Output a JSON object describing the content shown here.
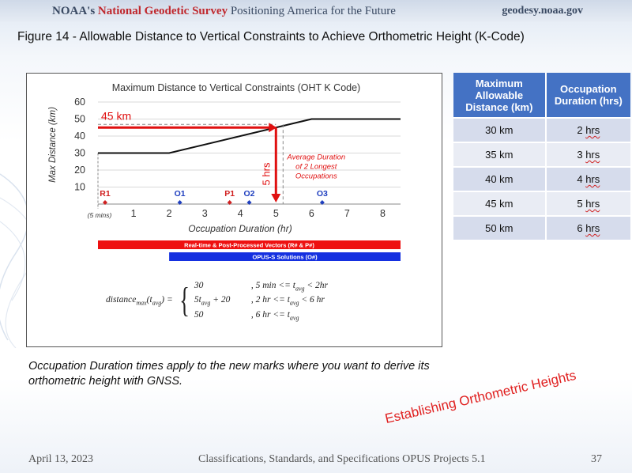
{
  "header": {
    "org_prefix": "NOAA's",
    "org_name": "National Geodetic Survey",
    "tagline": "Positioning America for the Future",
    "site": "geodesy.noaa.gov"
  },
  "figure_title": "Figure 14 - Allowable Distance to Vertical Constraints to Achieve Orthometric Height (K-Code)",
  "chart_data": {
    "type": "line",
    "title": "Maximum Distance to Vertical Constraints (OHT K Code)",
    "xlabel": "Occupation Duration (hr)",
    "ylabel": "Max Distance (km)",
    "xlim": [
      0,
      8.5
    ],
    "ylim": [
      0,
      60
    ],
    "xticks": [
      "1",
      "2",
      "3",
      "4",
      "5",
      "6",
      "7",
      "8"
    ],
    "xtick_values": [
      1,
      2,
      3,
      4,
      5,
      6,
      7,
      8
    ],
    "x_start_label": "(5 mins)",
    "yticks": [
      "10",
      "20",
      "30",
      "40",
      "50",
      "60"
    ],
    "ytick_values": [
      10,
      20,
      30,
      40,
      50,
      60
    ],
    "series": [
      {
        "x": [
          0,
          2,
          6,
          8.5
        ],
        "y": [
          30,
          30,
          50,
          50
        ]
      }
    ],
    "annotations": {
      "h_label": "45 km",
      "h_value": 45,
      "v_label": "5 hrs",
      "v_value": 5,
      "avg_dashed_x": 5.2,
      "avg_note": [
        "Average Duration",
        "of 2 Longest",
        "Occupations"
      ]
    },
    "markers": [
      {
        "label": "R1",
        "x": 0.2,
        "color": "#d02020"
      },
      {
        "label": "O1",
        "x": 2.3,
        "color": "#1f3fbf"
      },
      {
        "label": "P1",
        "x": 3.7,
        "color": "#d02020"
      },
      {
        "label": "O2",
        "x": 4.25,
        "color": "#1f3fbf"
      },
      {
        "label": "O3",
        "x": 6.3,
        "color": "#1f3fbf"
      }
    ],
    "bars": [
      {
        "label": "Real-time & Post-Processed Vectors (R# & P#)",
        "x0": 0,
        "x1": 8.5,
        "color": "#ee1111"
      },
      {
        "label": "OPUS-S Solutions (O#)",
        "x0": 2,
        "x1": 8.5,
        "color": "#1530e0"
      }
    ],
    "formula": {
      "lhs": "distance",
      "lhs_sub": "max",
      "lhs_arg": "(t",
      "lhs_arg_sub": "avg",
      "cases": [
        {
          "value": "30",
          "cond": ", 5 min <= t",
          "cond_sub": "avg",
          "cond_tail": " < 2hr"
        },
        {
          "value": "5t",
          "value_sub": "avg",
          "value_tail": " + 20",
          "cond": ", 2 hr <= t",
          "cond_sub": "avg",
          "cond_tail": " < 6 hr"
        },
        {
          "value": "50",
          "cond": ", 6 hr <= t",
          "cond_sub": "avg",
          "cond_tail": ""
        }
      ]
    }
  },
  "table": {
    "headers": [
      "Maximum Allowable Distance (km)",
      "Occupation Duration (hrs)"
    ],
    "rows": [
      {
        "distance": "30 km",
        "num": "2",
        "unit": "hrs"
      },
      {
        "distance": "35 km",
        "num": "3",
        "unit": "hrs"
      },
      {
        "distance": "40 km",
        "num": "4",
        "unit": "hrs"
      },
      {
        "distance": "45 km",
        "num": "5",
        "unit": "hrs"
      },
      {
        "distance": "50 km",
        "num": "6",
        "unit": "hrs"
      }
    ],
    "header_color": "#4472c4"
  },
  "note": "Occupation Duration times apply to the new marks where you want to derive its orthometric height with GNSS.",
  "stamp": "Establishing Orthometric Heights",
  "footer": {
    "date": "April 13, 2023",
    "center": "Classifications, Standards, and Specifications OPUS Projects 5.1",
    "page": "37"
  }
}
